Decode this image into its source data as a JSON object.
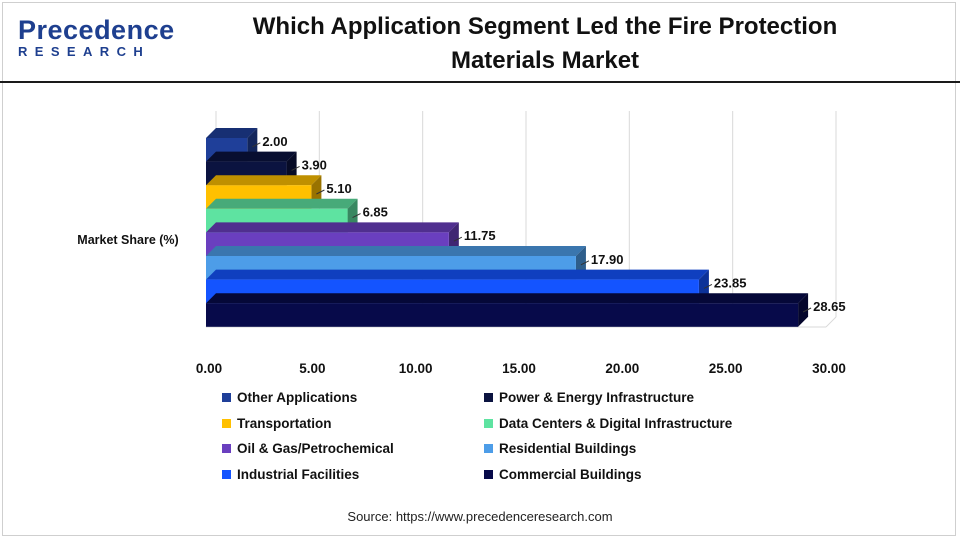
{
  "logo": {
    "main": "Precedence",
    "sub": "RESEARCH"
  },
  "title_line1": "Which Application Segment Led the Fire Protection",
  "title_line2": "Materials Market",
  "source": "Source: https://www.precedenceresearch.com",
  "chart_data": {
    "type": "bar",
    "orientation": "horizontal",
    "category_label": "Market Share (%)",
    "xlim": [
      0,
      30
    ],
    "x_ticks": [
      "0.00",
      "5.00",
      "10.00",
      "15.00",
      "20.00",
      "25.00",
      "30.00"
    ],
    "grid": true,
    "legend_position": "bottom",
    "series": [
      {
        "name": "Other Applications",
        "value": 2.0,
        "label": "2.00",
        "color": "#1f3f99"
      },
      {
        "name": "Power & Energy Infrastructure",
        "value": 3.9,
        "label": "3.90",
        "color": "#0b1340"
      },
      {
        "name": "Transportation",
        "value": 5.1,
        "label": "5.10",
        "color": "#ffc000"
      },
      {
        "name": "Data Centers & Digital Infrastructure",
        "value": 6.85,
        "label": "6.85",
        "color": "#5ee3a1"
      },
      {
        "name": "Oil & Gas/Petrochemical",
        "value": 11.75,
        "label": "11.75",
        "color": "#6a3fbf"
      },
      {
        "name": "Residential Buildings",
        "value": 17.9,
        "label": "17.90",
        "color": "#4d9de8"
      },
      {
        "name": "Industrial Facilities",
        "value": 23.85,
        "label": "23.85",
        "color": "#1454ff"
      },
      {
        "name": "Commercial Buildings",
        "value": 28.65,
        "label": "28.65",
        "color": "#070a4a"
      }
    ]
  }
}
